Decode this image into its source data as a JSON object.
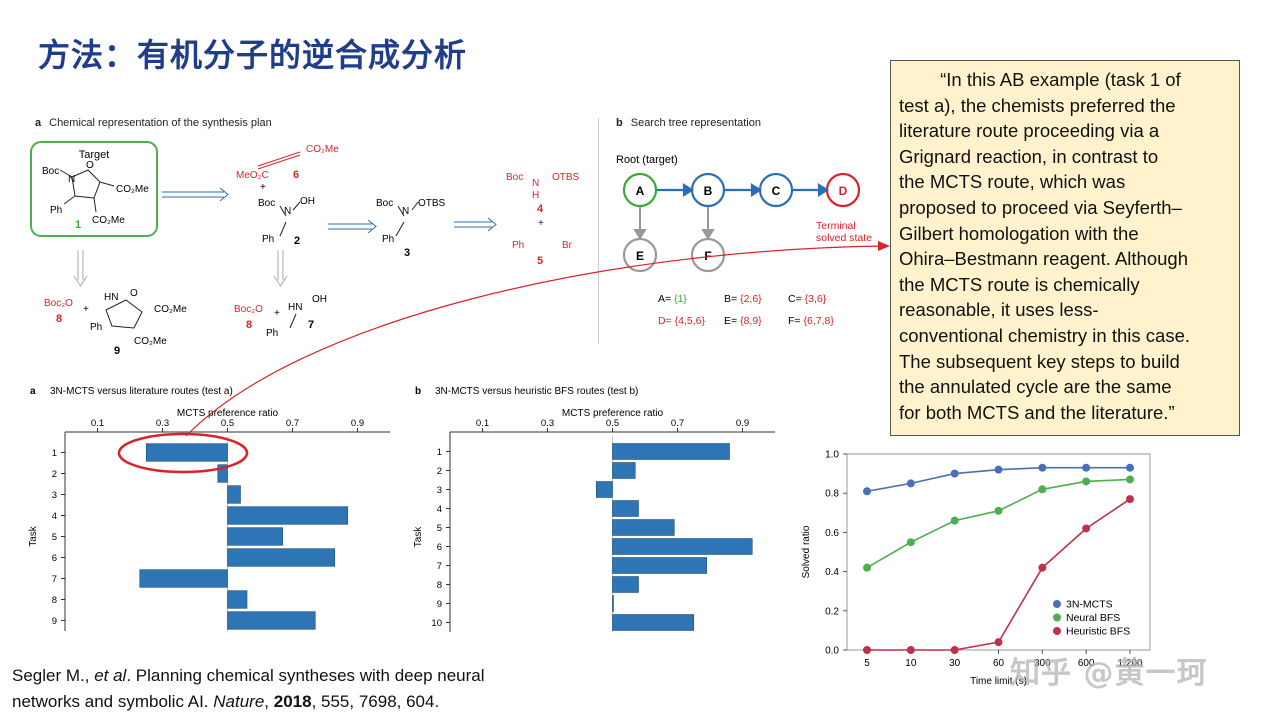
{
  "slide": {
    "title": "方法：有机分子的逆合成分析",
    "quote_lines": [
      "        “In this AB example (task 1 of",
      "test a), the chemists preferred the",
      "literature route proceeding via a",
      "Grignard reaction, in contrast to",
      "the MCTS route, which was",
      "proposed to proceed via Seyferth–",
      "Gilbert homologation with the",
      "Ohira–Bestmann reagent. Although",
      "the MCTS route is chemically",
      "reasonable, it uses less-",
      "conventional chemistry in this case.",
      "The subsequent key steps to build",
      "the annulated cycle are the same",
      "for both MCTS and the literature.”"
    ],
    "citation": {
      "authors": "Segler M., ",
      "etal": "et al",
      "title_text": ". Planning chemical syntheses with deep neural",
      "line2_a": "networks and symbolic AI. ",
      "journal": "Nature",
      "line2_b": ", ",
      "year": "2018",
      "rest": ", 555, 7698, 604."
    },
    "watermark": "知乎 @黄一珂"
  },
  "panel_a": {
    "letter": "a",
    "caption": "Chemical representation of the synthesis plan",
    "target_label": "Target",
    "labels": [
      "Boc",
      "N",
      "O",
      "Ph",
      "CO₂Me",
      "CO₂Me",
      "1",
      "MeO₂C",
      "CO₂Me",
      "6",
      "+",
      "Boc",
      "N",
      "OH",
      "Ph",
      "2",
      "Boc",
      "N",
      "OTBS",
      "Ph",
      "3",
      "Boc",
      "N",
      "H",
      "OTBS",
      "4",
      "+",
      "Ph",
      "Br",
      "5",
      "Boc₂O",
      "8",
      "+",
      "HN",
      "O",
      "CO₂Me",
      "Ph",
      "CO₂Me",
      "9",
      "Boc₂O",
      "8",
      "+",
      "HN",
      "OH",
      "Ph",
      "7"
    ]
  },
  "panel_b": {
    "letter": "b",
    "caption": "Search tree representation",
    "root_label": "Root (target)",
    "nodes": [
      "A",
      "B",
      "C",
      "D",
      "E",
      "F"
    ],
    "terminal_label_1": "Terminal",
    "terminal_label_2": "solved state",
    "sets": [
      {
        "k": "A= ",
        "v": "{1}"
      },
      {
        "k": "B= ",
        "v": "{2,6}"
      },
      {
        "k": "C= ",
        "v": "{3,6}"
      },
      {
        "k": "D= ",
        "v": "{4,5,6}"
      },
      {
        "k": "E= ",
        "v": "{8,9}"
      },
      {
        "k": "F= ",
        "v": "{6,7,8}"
      }
    ],
    "colors": {
      "green": "#3aaa35",
      "blue": "#2e6db4",
      "red": "#d9232a",
      "grey": "#999999"
    }
  },
  "chart_data": [
    {
      "type": "bar",
      "letter": "a",
      "title": "3N-MCTS versus literature routes (test a)",
      "xlabel": "MCTS preference ratio",
      "ylabel": "Task",
      "xticks": [
        "0.1",
        "0.3",
        "0.5",
        "0.7",
        "0.9"
      ],
      "xlim": [
        0,
        1
      ],
      "baseline": 0.5,
      "categories": [
        "1",
        "2",
        "3",
        "4",
        "5",
        "6",
        "7",
        "8",
        "9"
      ],
      "values": [
        0.25,
        0.47,
        0.54,
        0.87,
        0.67,
        0.83,
        0.23,
        0.56,
        0.77
      ],
      "color": "#2e75b6"
    },
    {
      "type": "bar",
      "letter": "b",
      "title": "3N-MCTS versus heuristic BFS routes (test b)",
      "xlabel": "MCTS preference ratio",
      "ylabel": "Task",
      "xticks": [
        "0.1",
        "0.3",
        "0.5",
        "0.7",
        "0.9"
      ],
      "xlim": [
        0,
        1
      ],
      "baseline": 0.5,
      "categories": [
        "1",
        "2",
        "3",
        "4",
        "5",
        "6",
        "7",
        "8",
        "9",
        "10"
      ],
      "values": [
        0.86,
        0.57,
        0.45,
        0.58,
        0.69,
        0.93,
        0.79,
        0.58,
        0.5,
        0.75
      ],
      "color": "#2e75b6"
    },
    {
      "type": "line",
      "xlabel": "Time limit (s)",
      "ylabel": "Solved ratio",
      "x": [
        "5",
        "10",
        "30",
        "60",
        "300",
        "600",
        "1,200"
      ],
      "ylim": [
        0,
        1.0
      ],
      "yticks": [
        "0.0",
        "0.2",
        "0.4",
        "0.6",
        "0.8",
        "1.0"
      ],
      "legend_position": "bottom-right",
      "series": [
        {
          "name": "3N-MCTS",
          "color": "#4a6fb5",
          "values": [
            0.81,
            0.85,
            0.9,
            0.92,
            0.93,
            0.93,
            0.93
          ]
        },
        {
          "name": "Neural BFS",
          "color": "#4caf50",
          "values": [
            0.42,
            0.55,
            0.66,
            0.71,
            0.82,
            0.86,
            0.87
          ]
        },
        {
          "name": "Heuristic BFS",
          "color": "#c0304a",
          "values": [
            0.0,
            0.0,
            0.0,
            0.04,
            0.42,
            0.62,
            0.77
          ]
        }
      ]
    }
  ]
}
